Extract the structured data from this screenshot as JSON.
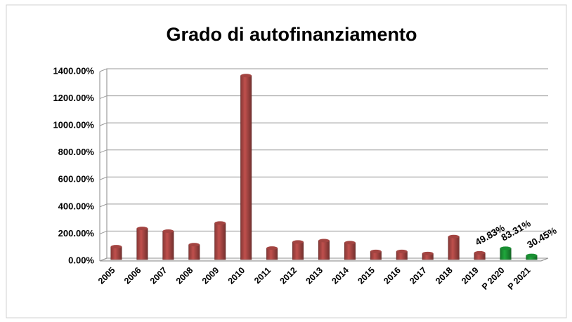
{
  "chart_data": {
    "type": "bar",
    "title": "Grado di autofinanziamento",
    "categories": [
      "2005",
      "2006",
      "2007",
      "2008",
      "2009",
      "2010",
      "2011",
      "2012",
      "2013",
      "2014",
      "2015",
      "2016",
      "2017",
      "2018",
      "2019",
      "P 2020",
      "P 2021"
    ],
    "values": [
      95,
      230,
      210,
      110,
      270,
      1360,
      85,
      130,
      140,
      125,
      60,
      60,
      45,
      170,
      49.83,
      83.31,
      30.45
    ],
    "value_labels": [
      null,
      null,
      null,
      null,
      null,
      null,
      null,
      null,
      null,
      null,
      null,
      null,
      null,
      null,
      "49.83%",
      "83.31%",
      "30.45%"
    ],
    "colors": [
      "#c0504d",
      "#c0504d",
      "#c0504d",
      "#c0504d",
      "#c0504d",
      "#c0504d",
      "#c0504d",
      "#c0504d",
      "#c0504d",
      "#c0504d",
      "#c0504d",
      "#c0504d",
      "#c0504d",
      "#c0504d",
      "#c0504d",
      "#1fa83c",
      "#1fa83c"
    ],
    "ylim": [
      0,
      1400
    ],
    "yticks": [
      {
        "value": 0,
        "label": "0.00%"
      },
      {
        "value": 200,
        "label": "200.00%"
      },
      {
        "value": 400,
        "label": "400.00%"
      },
      {
        "value": 600,
        "label": "600.00%"
      },
      {
        "value": 800,
        "label": "800.00%"
      },
      {
        "value": 1000,
        "label": "1000.00%"
      },
      {
        "value": 1200,
        "label": "1200.00%"
      },
      {
        "value": 1400,
        "label": "1400.00%"
      }
    ],
    "grid": true
  }
}
